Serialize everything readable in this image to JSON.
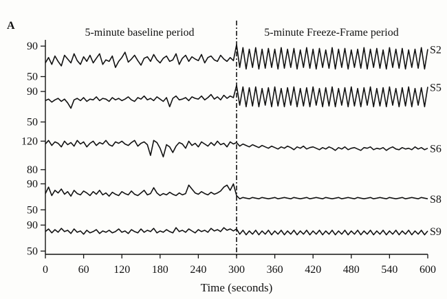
{
  "chart_data": {
    "type": "line",
    "panel_label": "A",
    "period_labels": [
      "5-minute baseline period",
      "5-minute Freeze-Frame period"
    ],
    "divider_x": 300,
    "xlabel": "Time (seconds)",
    "xlim": [
      0,
      600
    ],
    "xticks": [
      0,
      60,
      120,
      180,
      240,
      300,
      360,
      420,
      480,
      540,
      600
    ],
    "grid": false,
    "series": [
      {
        "name": "S2",
        "yticks": [
          50,
          90
        ],
        "ylim": [
          45,
          100
        ],
        "x": [
          0,
          5,
          10,
          15,
          20,
          25,
          30,
          35,
          40,
          45,
          50,
          55,
          60,
          65,
          70,
          75,
          80,
          85,
          90,
          95,
          100,
          105,
          110,
          115,
          120,
          125,
          130,
          135,
          140,
          145,
          150,
          155,
          160,
          165,
          170,
          175,
          180,
          185,
          190,
          195,
          200,
          205,
          210,
          215,
          220,
          225,
          230,
          235,
          240,
          245,
          250,
          255,
          260,
          265,
          270,
          275,
          280,
          285,
          290,
          295,
          300,
          305,
          310,
          315,
          320,
          325,
          330,
          335,
          340,
          345,
          350,
          355,
          360,
          365,
          370,
          375,
          380,
          385,
          390,
          395,
          400,
          405,
          410,
          415,
          420,
          425,
          430,
          435,
          440,
          445,
          450,
          455,
          460,
          465,
          470,
          475,
          480,
          485,
          490,
          495,
          500,
          505,
          510,
          515,
          520,
          525,
          530,
          535,
          540,
          545,
          550,
          555,
          560,
          565,
          570,
          575,
          580,
          585,
          590,
          595,
          600
        ],
        "values": [
          68,
          75,
          66,
          77,
          70,
          64,
          78,
          73,
          68,
          80,
          71,
          66,
          76,
          70,
          78,
          68,
          74,
          80,
          66,
          72,
          70,
          77,
          62,
          70,
          75,
          82,
          69,
          73,
          78,
          71,
          65,
          74,
          76,
          70,
          79,
          72,
          68,
          74,
          77,
          70,
          72,
          80,
          66,
          74,
          78,
          70,
          76,
          73,
          71,
          79,
          68,
          75,
          77,
          72,
          70,
          78,
          73,
          70,
          75,
          71,
          92,
          62,
          88,
          60,
          86,
          62,
          88,
          60,
          86,
          61,
          87,
          62,
          86,
          60,
          88,
          61,
          86,
          62,
          87,
          60,
          85,
          62,
          88,
          61,
          86,
          60,
          87,
          62,
          85,
          61,
          88,
          60,
          86,
          62,
          87,
          60,
          85,
          62,
          86,
          61,
          88,
          60,
          86,
          62,
          87,
          61,
          85,
          60,
          88,
          62,
          86,
          61,
          87,
          60,
          85,
          62,
          86,
          61,
          88,
          60,
          86
        ]
      },
      {
        "name": "S5",
        "yticks": [
          50,
          90
        ],
        "ylim": [
          45,
          100
        ],
        "x": [
          0,
          5,
          10,
          15,
          20,
          25,
          30,
          35,
          40,
          45,
          50,
          55,
          60,
          65,
          70,
          75,
          80,
          85,
          90,
          95,
          100,
          105,
          110,
          115,
          120,
          125,
          130,
          135,
          140,
          145,
          150,
          155,
          160,
          165,
          170,
          175,
          180,
          185,
          190,
          195,
          200,
          205,
          210,
          215,
          220,
          225,
          230,
          235,
          240,
          245,
          250,
          255,
          260,
          265,
          270,
          275,
          280,
          285,
          290,
          295,
          300,
          305,
          310,
          315,
          320,
          325,
          330,
          335,
          340,
          345,
          350,
          355,
          360,
          365,
          370,
          375,
          380,
          385,
          390,
          395,
          400,
          405,
          410,
          415,
          420,
          425,
          430,
          435,
          440,
          445,
          450,
          455,
          460,
          465,
          470,
          475,
          480,
          485,
          490,
          495,
          500,
          505,
          510,
          515,
          520,
          525,
          530,
          535,
          540,
          545,
          550,
          555,
          560,
          565,
          570,
          575,
          580,
          585,
          590,
          595,
          600
        ],
        "values": [
          78,
          80,
          76,
          79,
          81,
          77,
          80,
          75,
          68,
          79,
          81,
          78,
          82,
          77,
          80,
          79,
          83,
          78,
          81,
          80,
          77,
          82,
          79,
          81,
          78,
          80,
          83,
          79,
          77,
          82,
          80,
          84,
          79,
          81,
          78,
          83,
          80,
          77,
          82,
          70,
          81,
          84,
          79,
          80,
          82,
          78,
          83,
          81,
          80,
          84,
          79,
          82,
          86,
          80,
          83,
          79,
          85,
          81,
          84,
          82,
          98,
          72,
          96,
          70,
          95,
          71,
          96,
          70,
          94,
          72,
          95,
          70,
          96,
          71,
          94,
          70,
          95,
          72,
          96,
          70,
          94,
          71,
          95,
          70,
          96,
          72,
          94,
          70,
          95,
          71,
          96,
          70,
          94,
          72,
          95,
          70,
          96,
          71,
          94,
          70,
          95,
          72,
          96,
          70,
          94,
          71,
          95,
          70,
          96,
          72,
          94,
          70,
          95,
          71,
          96,
          70,
          94,
          72,
          95,
          70,
          96
        ]
      },
      {
        "name": "S6",
        "yticks": [
          80,
          120
        ],
        "ylim": [
          75,
          130
        ],
        "x": [
          0,
          5,
          10,
          15,
          20,
          25,
          30,
          35,
          40,
          45,
          50,
          55,
          60,
          65,
          70,
          75,
          80,
          85,
          90,
          95,
          100,
          105,
          110,
          115,
          120,
          125,
          130,
          135,
          140,
          145,
          150,
          155,
          160,
          165,
          170,
          175,
          180,
          185,
          190,
          195,
          200,
          205,
          210,
          215,
          220,
          225,
          230,
          235,
          240,
          245,
          250,
          255,
          260,
          265,
          270,
          275,
          280,
          285,
          290,
          295,
          300,
          305,
          310,
          315,
          320,
          325,
          330,
          335,
          340,
          345,
          350,
          355,
          360,
          365,
          370,
          375,
          380,
          385,
          390,
          395,
          400,
          405,
          410,
          415,
          420,
          425,
          430,
          435,
          440,
          445,
          450,
          455,
          460,
          465,
          470,
          475,
          480,
          485,
          490,
          495,
          500,
          505,
          510,
          515,
          520,
          525,
          530,
          535,
          540,
          545,
          550,
          555,
          560,
          565,
          570,
          575,
          580,
          585,
          590,
          595,
          600
        ],
        "values": [
          116,
          121,
          114,
          119,
          117,
          112,
          120,
          115,
          118,
          113,
          121,
          116,
          119,
          112,
          117,
          120,
          114,
          118,
          116,
          121,
          115,
          113,
          119,
          117,
          120,
          116,
          114,
          118,
          121,
          113,
          117,
          119,
          115,
          100,
          121,
          118,
          110,
          98,
          115,
          112,
          104,
          113,
          118,
          116,
          110,
          120,
          114,
          117,
          112,
          119,
          116,
          113,
          118,
          114,
          120,
          115,
          117,
          112,
          119,
          116,
          118,
          113,
          116,
          114,
          112,
          115,
          113,
          111,
          114,
          112,
          110,
          113,
          111,
          109,
          112,
          110,
          113,
          111,
          108,
          112,
          110,
          113,
          109,
          111,
          112,
          110,
          108,
          111,
          109,
          112,
          110,
          107,
          111,
          109,
          112,
          108,
          110,
          111,
          109,
          107,
          111,
          110,
          112,
          108,
          110,
          109,
          111,
          107,
          110,
          112,
          109,
          108,
          111,
          109,
          110,
          108,
          112,
          109,
          111,
          108,
          110
        ]
      },
      {
        "name": "S8",
        "yticks": [
          50,
          90
        ],
        "ylim": [
          45,
          100
        ],
        "x": [
          0,
          5,
          10,
          15,
          20,
          25,
          30,
          35,
          40,
          45,
          50,
          55,
          60,
          65,
          70,
          75,
          80,
          85,
          90,
          95,
          100,
          105,
          110,
          115,
          120,
          125,
          130,
          135,
          140,
          145,
          150,
          155,
          160,
          165,
          170,
          175,
          180,
          185,
          190,
          195,
          200,
          205,
          210,
          215,
          220,
          225,
          230,
          235,
          240,
          245,
          250,
          255,
          260,
          265,
          270,
          275,
          280,
          285,
          290,
          295,
          300,
          305,
          310,
          315,
          320,
          325,
          330,
          335,
          340,
          345,
          350,
          355,
          360,
          365,
          370,
          375,
          380,
          385,
          390,
          395,
          400,
          405,
          410,
          415,
          420,
          425,
          430,
          435,
          440,
          445,
          450,
          455,
          460,
          465,
          470,
          475,
          480,
          485,
          490,
          495,
          500,
          505,
          510,
          515,
          520,
          525,
          530,
          535,
          540,
          545,
          550,
          555,
          560,
          565,
          570,
          575,
          580,
          585,
          590,
          595,
          600
        ],
        "values": [
          75,
          85,
          72,
          80,
          76,
          82,
          74,
          78,
          71,
          80,
          75,
          73,
          79,
          76,
          72,
          78,
          74,
          80,
          73,
          76,
          71,
          77,
          74,
          72,
          78,
          75,
          73,
          79,
          74,
          72,
          76,
          80,
          73,
          75,
          84,
          76,
          72,
          75,
          73,
          77,
          74,
          72,
          76,
          73,
          75,
          88,
          82,
          76,
          74,
          78,
          75,
          73,
          77,
          74,
          76,
          79,
          85,
          88,
          80,
          90,
          72,
          67,
          69,
          68,
          67,
          69,
          68,
          67,
          69,
          68,
          67,
          68,
          69,
          67,
          68,
          69,
          68,
          67,
          69,
          68,
          67,
          68,
          69,
          67,
          68,
          69,
          68,
          67,
          69,
          68,
          67,
          68,
          69,
          67,
          68,
          69,
          68,
          67,
          69,
          68,
          67,
          68,
          69,
          67,
          68,
          69,
          68,
          67,
          69,
          68,
          67,
          68,
          69,
          67,
          68,
          69,
          68,
          67,
          69,
          68,
          67
        ]
      },
      {
        "name": "S9",
        "yticks": [
          50,
          90
        ],
        "ylim": [
          45,
          100
        ],
        "x": [
          0,
          5,
          10,
          15,
          20,
          25,
          30,
          35,
          40,
          45,
          50,
          55,
          60,
          65,
          70,
          75,
          80,
          85,
          90,
          95,
          100,
          105,
          110,
          115,
          120,
          125,
          130,
          135,
          140,
          145,
          150,
          155,
          160,
          165,
          170,
          175,
          180,
          185,
          190,
          195,
          200,
          205,
          210,
          215,
          220,
          225,
          230,
          235,
          240,
          245,
          250,
          255,
          260,
          265,
          270,
          275,
          280,
          285,
          290,
          295,
          300,
          305,
          310,
          315,
          320,
          325,
          330,
          335,
          340,
          345,
          350,
          355,
          360,
          365,
          370,
          375,
          380,
          385,
          390,
          395,
          400,
          405,
          410,
          415,
          420,
          425,
          430,
          435,
          440,
          445,
          450,
          455,
          460,
          465,
          470,
          475,
          480,
          485,
          490,
          495,
          500,
          505,
          510,
          515,
          520,
          525,
          530,
          535,
          540,
          545,
          550,
          555,
          560,
          565,
          570,
          575,
          580,
          585,
          590,
          595,
          600
        ],
        "values": [
          80,
          84,
          78,
          83,
          79,
          85,
          80,
          82,
          77,
          84,
          79,
          81,
          76,
          82,
          78,
          80,
          83,
          77,
          81,
          79,
          82,
          78,
          80,
          84,
          79,
          81,
          77,
          83,
          80,
          78,
          84,
          79,
          82,
          80,
          85,
          78,
          81,
          79,
          83,
          80,
          78,
          86,
          80,
          82,
          79,
          84,
          81,
          78,
          83,
          80,
          82,
          79,
          85,
          81,
          83,
          80,
          86,
          82,
          84,
          81,
          84,
          76,
          82,
          75,
          81,
          76,
          82,
          75,
          81,
          76,
          82,
          75,
          81,
          76,
          82,
          75,
          81,
          76,
          82,
          75,
          81,
          76,
          82,
          75,
          81,
          76,
          82,
          75,
          81,
          76,
          82,
          75,
          81,
          76,
          82,
          75,
          81,
          76,
          82,
          75,
          81,
          76,
          82,
          75,
          81,
          76,
          82,
          75,
          81,
          76,
          82,
          75,
          81,
          76,
          82,
          75,
          81,
          76,
          82,
          75,
          81
        ]
      }
    ]
  }
}
